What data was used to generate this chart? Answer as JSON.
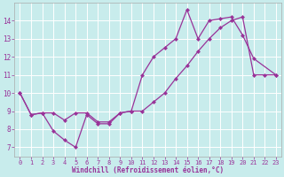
{
  "xlabel": "Windchill (Refroidissement éolien,°C)",
  "bg_color": "#c8ecec",
  "line_color": "#993399",
  "grid_color": "#ffffff",
  "xlim": [
    -0.5,
    23.5
  ],
  "ylim": [
    6.5,
    15.0
  ],
  "xticks": [
    0,
    1,
    2,
    3,
    4,
    5,
    6,
    7,
    8,
    9,
    10,
    11,
    12,
    13,
    14,
    15,
    16,
    17,
    18,
    19,
    20,
    21,
    22,
    23
  ],
  "yticks": [
    7,
    8,
    9,
    10,
    11,
    12,
    13,
    14
  ],
  "curve1_x": [
    0,
    1,
    2,
    3,
    4,
    5,
    6,
    7,
    8,
    9,
    10,
    11,
    12,
    13,
    14,
    15,
    16,
    17,
    18,
    19,
    20,
    21,
    23
  ],
  "curve1_y": [
    10.0,
    8.8,
    8.9,
    7.9,
    7.4,
    7.0,
    8.8,
    8.3,
    8.3,
    8.9,
    9.0,
    11.0,
    12.0,
    12.5,
    13.0,
    14.6,
    13.0,
    14.0,
    14.1,
    14.2,
    13.2,
    11.9,
    11.0
  ],
  "curve2_x": [
    0,
    1,
    2,
    3,
    4,
    5,
    6,
    7,
    8,
    9,
    10,
    11,
    12,
    13,
    14,
    15,
    16,
    17,
    18,
    19,
    20,
    21,
    22,
    23
  ],
  "curve2_y": [
    10.0,
    8.8,
    8.9,
    8.9,
    8.5,
    8.9,
    8.9,
    8.4,
    8.4,
    8.9,
    9.0,
    9.0,
    9.5,
    10.0,
    10.8,
    11.5,
    12.3,
    13.0,
    13.6,
    14.0,
    14.2,
    11.0,
    11.0,
    11.0
  ]
}
